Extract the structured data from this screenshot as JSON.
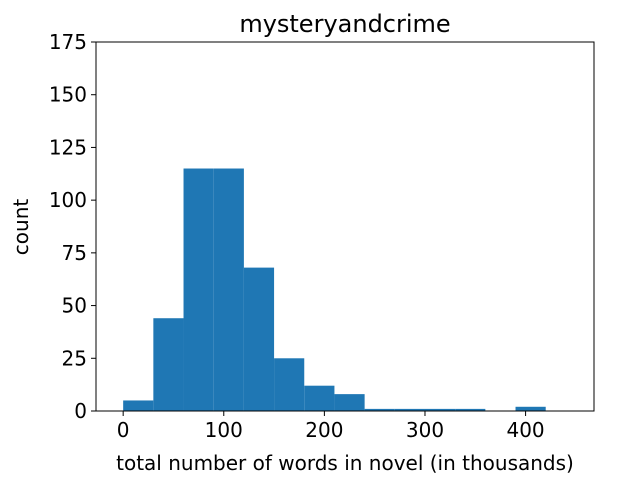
{
  "chart_data": {
    "type": "bar",
    "title": "mysteryandcrime",
    "xlabel": "total number of words in novel (in thousands)",
    "ylabel": "count",
    "bin_edges": [
      0,
      30,
      60,
      90,
      120,
      150,
      180,
      210,
      240,
      270,
      300,
      330,
      360,
      390,
      420
    ],
    "values": [
      5,
      44,
      115,
      115,
      68,
      25,
      12,
      8,
      1,
      1,
      1,
      1,
      0,
      2
    ],
    "xlim": [
      -27,
      468
    ],
    "ylim": [
      0,
      175
    ],
    "xticks": [
      0,
      100,
      200,
      300,
      400
    ],
    "yticks": [
      0,
      25,
      50,
      75,
      100,
      125,
      150,
      175
    ],
    "color": "#1f77b4",
    "grid": false
  }
}
